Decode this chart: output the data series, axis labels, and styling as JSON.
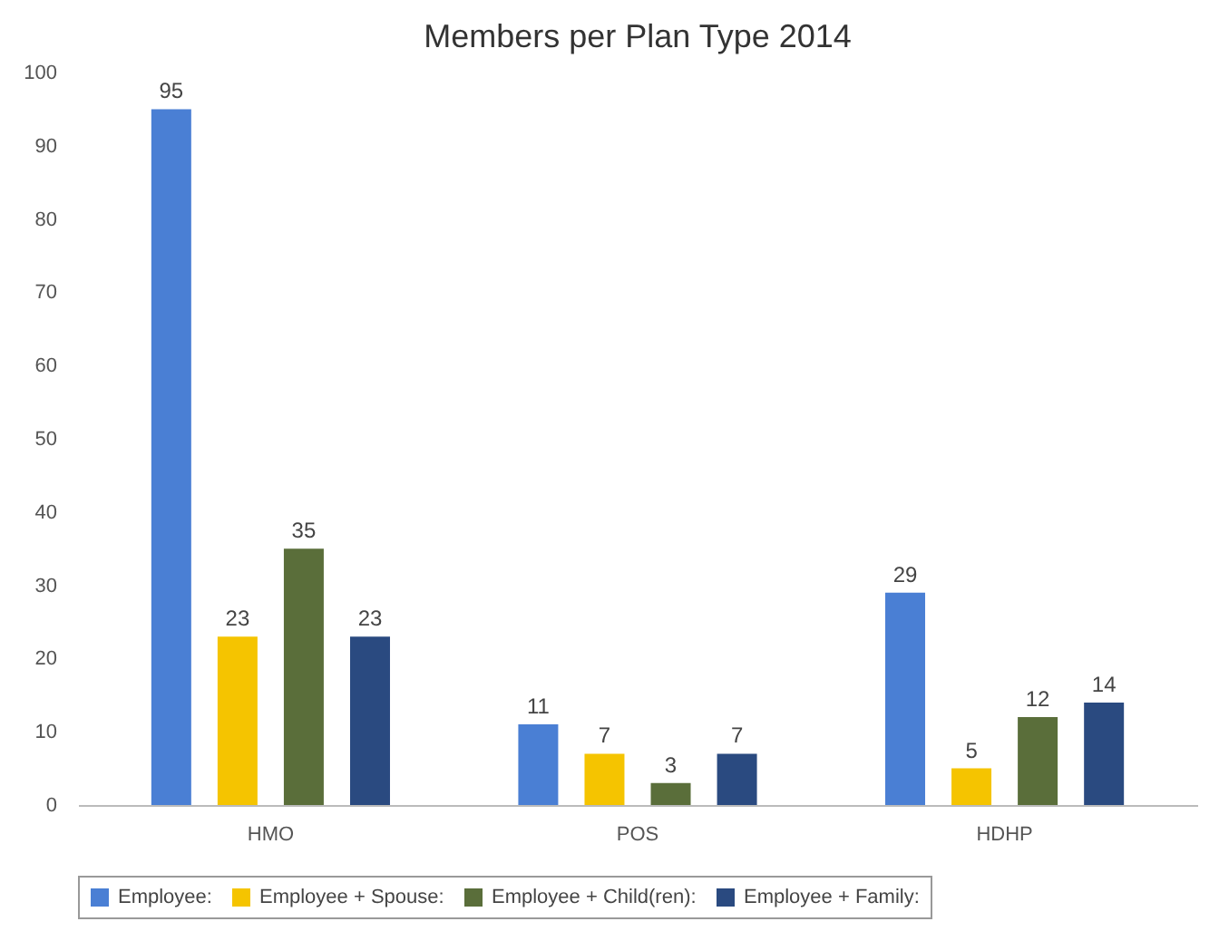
{
  "chart_data": {
    "type": "bar",
    "title": "Members per Plan Type 2014",
    "categories": [
      "HMO",
      "POS",
      "HDHP"
    ],
    "series": [
      {
        "name": "Employee:",
        "color": "#4a7fd4",
        "values": [
          95,
          11,
          29
        ]
      },
      {
        "name": "Employee + Spouse:",
        "color": "#f5c400",
        "values": [
          23,
          7,
          5
        ]
      },
      {
        "name": "Employee + Child(ren):",
        "color": "#5a6e3a",
        "values": [
          35,
          3,
          12
        ]
      },
      {
        "name": "Employee + Family:",
        "color": "#2a4a80",
        "values": [
          23,
          7,
          14
        ]
      }
    ],
    "ylim": [
      0,
      100
    ],
    "yticks": [
      0,
      10,
      20,
      30,
      40,
      50,
      60,
      70,
      80,
      90,
      100
    ],
    "data_labels": true,
    "grid": false,
    "legend": "bottom"
  }
}
